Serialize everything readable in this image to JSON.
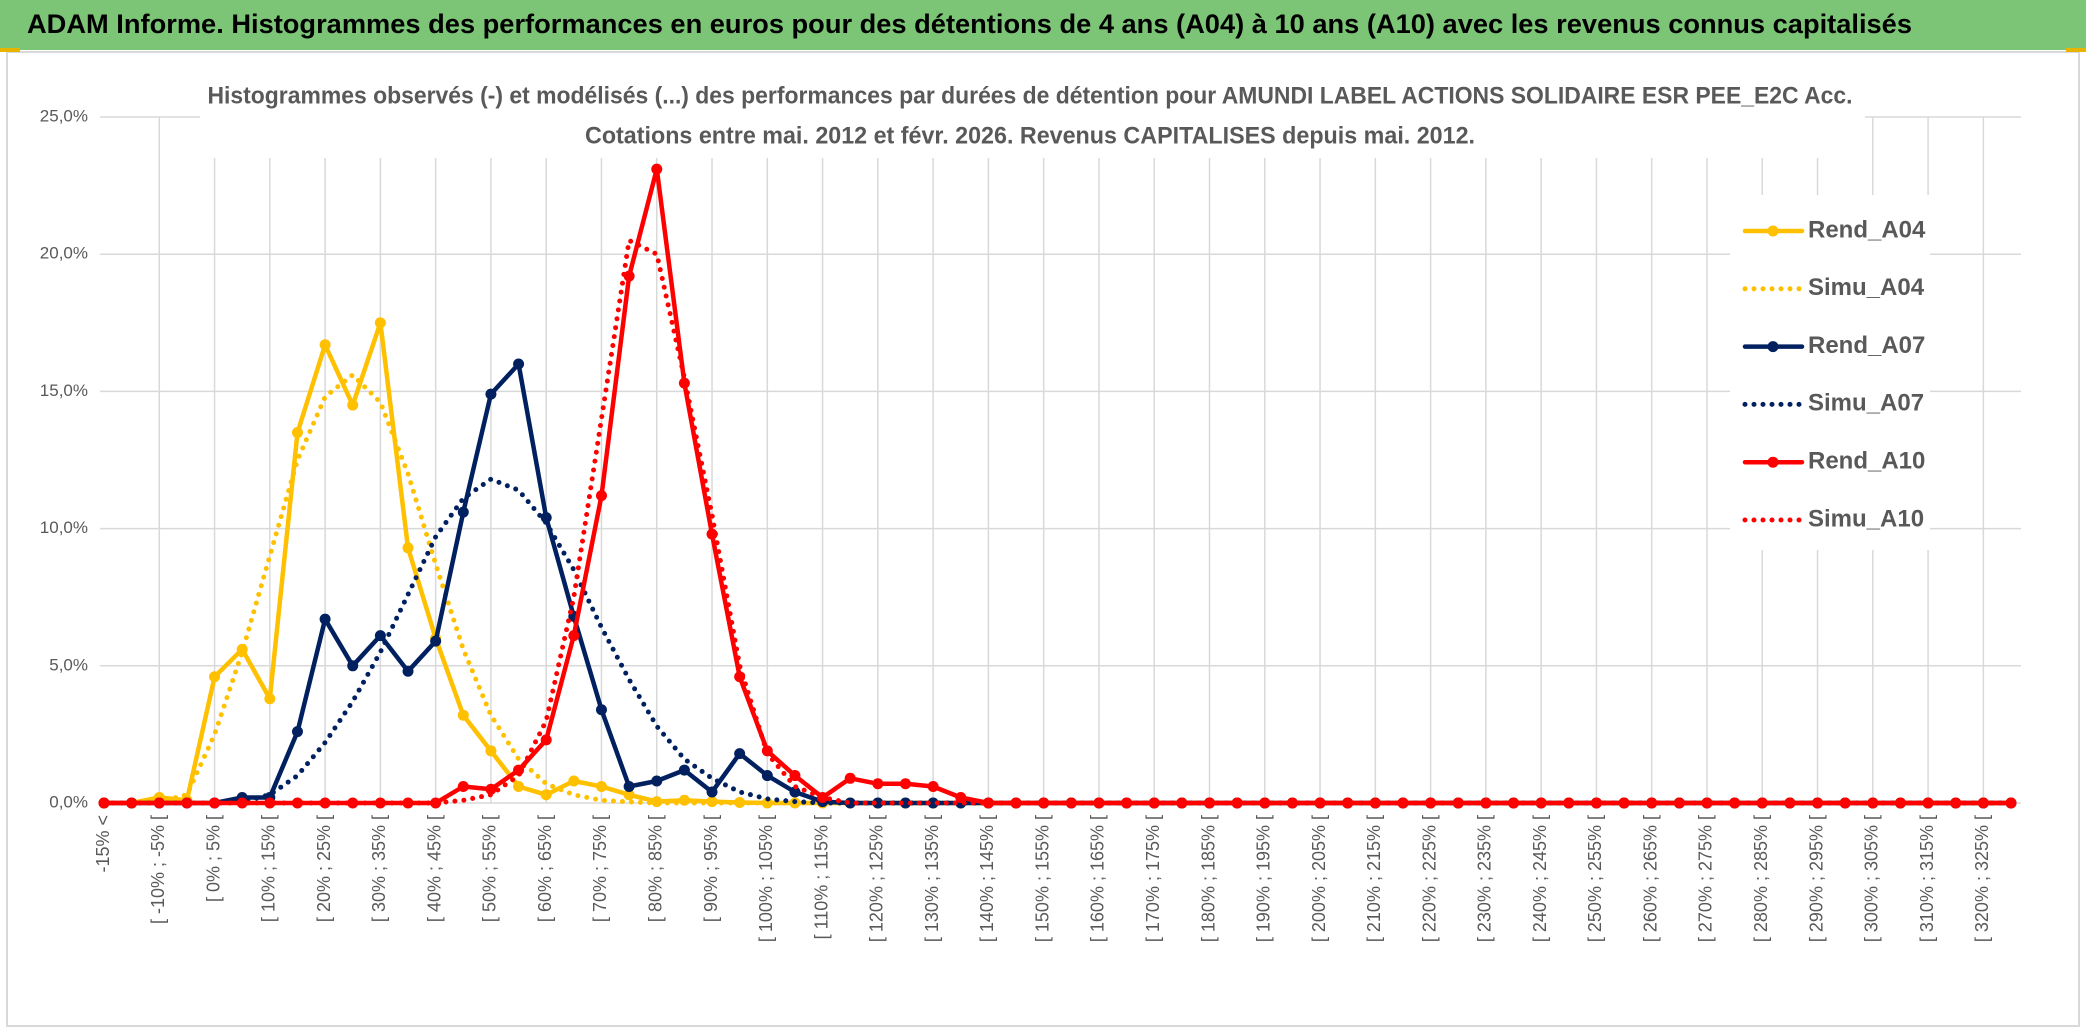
{
  "page_title": "ADAM Informe. Histogrammes des performances en euros pour des détentions de 4 ans (A04) à 10 ans (A10) avec les revenus connus capitalisés",
  "chart_data": {
    "type": "line",
    "title": "Histogrammes observés (-) et modélisés (...) des performances par durées de détention pour AMUNDI LABEL ACTIONS SOLIDAIRE ESR PEE_E2C Acc.",
    "subtitle": "Cotations entre mai. 2012 et févr. 2026. Revenus CAPITALISES depuis mai. 2012.",
    "categories": [
      "-15% <",
      null,
      "[ -10% ; -5% [",
      null,
      "[ 0% ; 5% [",
      null,
      "[ 10% ; 15% [",
      null,
      "[ 20% ; 25% [",
      null,
      "[ 30% ; 35% [",
      null,
      "[ 40% ; 45% [",
      null,
      "[ 50% ; 55% [",
      null,
      "[ 60% ; 65% [",
      null,
      "[ 70% ; 75% [",
      null,
      "[ 80% ; 85% [",
      null,
      "[ 90% ; 95% [",
      null,
      "[ 100% ; 105% [",
      null,
      "[ 110% ; 115% [",
      null,
      "[ 120% ; 125% [",
      null,
      "[ 130% ; 135% [",
      null,
      "[ 140% ; 145% [",
      null,
      "[ 150% ; 155% [",
      null,
      "[ 160% ; 165% [",
      null,
      "[ 170% ; 175% [",
      null,
      "[ 180% ; 185% [",
      null,
      "[ 190% ; 195% [",
      null,
      "[ 200% ; 205% [",
      null,
      "[ 210% ; 215% [",
      null,
      "[ 220% ; 225% [",
      null,
      "[ 230% ; 235% [",
      null,
      "[ 240% ; 245% [",
      null,
      "[ 250% ; 255% [",
      null,
      "[ 260% ; 265% [",
      null,
      "[ 270% ; 275% [",
      null,
      "[ 280% ; 285% [",
      null,
      "[ 290% ; 295% [",
      null,
      "[ 300% ; 305% [",
      null,
      "[ 310% ; 315% [",
      null,
      "[ 320% ; 325% [",
      null
    ],
    "series": [
      {
        "name": "Rend_A04",
        "color": "#FFC000",
        "style": "solid",
        "markers": true,
        "values": [
          0,
          0,
          0.2,
          0.1,
          4.6,
          5.6,
          3.8,
          13.5,
          16.7,
          14.5,
          17.5,
          9.3,
          6.0,
          3.2,
          1.9,
          0.6,
          0.3,
          0.8,
          0.6,
          0.3,
          0.05,
          0.1,
          0.05,
          0.02,
          0,
          0,
          0,
          0,
          0,
          0,
          0,
          0,
          0,
          0,
          0,
          0,
          0,
          0,
          0,
          0,
          0,
          0,
          0,
          0,
          0,
          0,
          0,
          0,
          0,
          0,
          0,
          0,
          0,
          0,
          0,
          0,
          0,
          0,
          0,
          0,
          0,
          0,
          0,
          0,
          0,
          0,
          0,
          0,
          0,
          0
        ]
      },
      {
        "name": "Simu_A04",
        "color": "#FFC000",
        "style": "dotted",
        "markers": false,
        "values": [
          0,
          0,
          0.05,
          0.3,
          2.5,
          5.5,
          9.0,
          12.5,
          14.8,
          15.6,
          14.6,
          12.0,
          8.7,
          5.6,
          3.2,
          1.6,
          0.7,
          0.3,
          0.1,
          0.04,
          0,
          0,
          0,
          0,
          0,
          0,
          0,
          0,
          0,
          0,
          0,
          0,
          0,
          0,
          0,
          0,
          0,
          0,
          0,
          0,
          0,
          0,
          0,
          0,
          0,
          0,
          0,
          0,
          0,
          0,
          0,
          0,
          0,
          0,
          0,
          0,
          0,
          0,
          0,
          0,
          0,
          0,
          0,
          0,
          0,
          0,
          0,
          0,
          0,
          0
        ]
      },
      {
        "name": "Rend_A07",
        "color": "#002060",
        "style": "solid",
        "markers": true,
        "values": [
          0,
          0,
          0,
          0,
          0,
          0.2,
          0.2,
          2.6,
          6.7,
          5.0,
          6.1,
          4.8,
          5.9,
          10.6,
          14.9,
          16.0,
          10.4,
          6.8,
          3.4,
          0.6,
          0.8,
          1.2,
          0.4,
          1.8,
          1.0,
          0.4,
          0.05,
          0,
          0,
          0,
          0,
          0,
          0,
          0,
          0,
          0,
          0,
          0,
          0,
          0,
          0,
          0,
          0,
          0,
          0,
          0,
          0,
          0,
          0,
          0,
          0,
          0,
          0,
          0,
          0,
          0,
          0,
          0,
          0,
          0,
          0,
          0,
          0,
          0,
          0,
          0,
          0,
          0,
          0,
          0
        ]
      },
      {
        "name": "Simu_A07",
        "color": "#002060",
        "style": "dotted",
        "markers": false,
        "values": [
          0,
          0,
          0,
          0,
          0,
          0.05,
          0.3,
          1.0,
          2.2,
          3.7,
          5.5,
          7.6,
          9.7,
          11.1,
          11.8,
          11.4,
          10.2,
          8.5,
          6.4,
          4.5,
          2.8,
          1.6,
          0.9,
          0.4,
          0.15,
          0.05,
          0,
          0,
          0,
          0,
          0,
          0,
          0,
          0,
          0,
          0,
          0,
          0,
          0,
          0,
          0,
          0,
          0,
          0,
          0,
          0,
          0,
          0,
          0,
          0,
          0,
          0,
          0,
          0,
          0,
          0,
          0,
          0,
          0,
          0,
          0,
          0,
          0,
          0,
          0,
          0,
          0,
          0,
          0,
          0
        ]
      },
      {
        "name": "Rend_A10",
        "color": "#FF0000",
        "style": "solid",
        "markers": true,
        "values": [
          0,
          0,
          0,
          0,
          0,
          0,
          0,
          0,
          0,
          0,
          0,
          0,
          0,
          0.6,
          0.5,
          1.2,
          2.3,
          6.1,
          11.2,
          19.2,
          23.1,
          15.3,
          9.8,
          4.6,
          1.9,
          1.0,
          0.2,
          0.9,
          0.7,
          0.7,
          0.6,
          0.2,
          0,
          0,
          0,
          0,
          0,
          0,
          0,
          0,
          0,
          0,
          0,
          0,
          0,
          0,
          0,
          0,
          0,
          0,
          0,
          0,
          0,
          0,
          0,
          0,
          0,
          0,
          0,
          0,
          0,
          0,
          0,
          0,
          0,
          0,
          0,
          0,
          0,
          0
        ]
      },
      {
        "name": "Simu_A10",
        "color": "#FF0000",
        "style": "dotted",
        "markers": false,
        "values": [
          0,
          0,
          0,
          0,
          0,
          0,
          0,
          0,
          0,
          0,
          0,
          0,
          0,
          0.1,
          0.3,
          1.0,
          3.0,
          7.5,
          14.0,
          20.5,
          20.0,
          15.5,
          10.5,
          5.0,
          1.8,
          0.6,
          0.2,
          0,
          0,
          0,
          0,
          0,
          0,
          0,
          0,
          0,
          0,
          0,
          0,
          0,
          0,
          0,
          0,
          0,
          0,
          0,
          0,
          0,
          0,
          0,
          0,
          0,
          0,
          0,
          0,
          0,
          0,
          0,
          0,
          0,
          0,
          0,
          0,
          0,
          0,
          0,
          0,
          0,
          0,
          0
        ]
      }
    ],
    "ylim": [
      0,
      25
    ],
    "yticks": [
      {
        "value": 0,
        "label": "0,0%"
      },
      {
        "value": 5,
        "label": "5,0%"
      },
      {
        "value": 10,
        "label": "10,0%"
      },
      {
        "value": 15,
        "label": "15,0%"
      },
      {
        "value": 20,
        "label": "20,0%"
      },
      {
        "value": 25,
        "label": "25,0%"
      }
    ],
    "grid": true,
    "legend": "right"
  }
}
